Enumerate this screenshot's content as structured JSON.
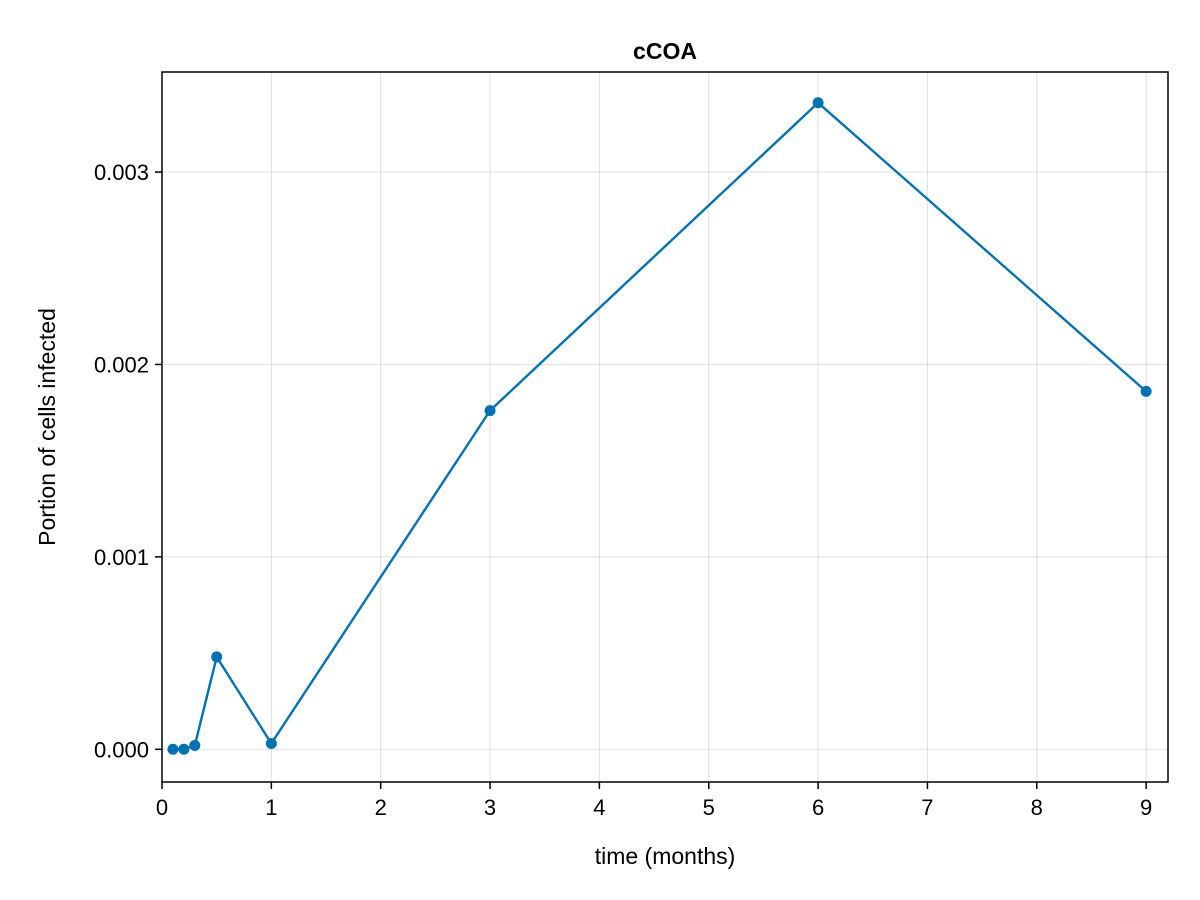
{
  "chart_data": {
    "type": "line",
    "title": "cCOA",
    "xlabel": "time (months)",
    "ylabel": "Portion of cells infected",
    "xlim": [
      0,
      9.2
    ],
    "ylim": [
      -0.00017,
      0.00352
    ],
    "x_ticks": [
      0,
      1,
      2,
      3,
      4,
      5,
      6,
      7,
      8,
      9
    ],
    "x_tick_labels": [
      "0",
      "1",
      "2",
      "3",
      "4",
      "5",
      "6",
      "7",
      "8",
      "9"
    ],
    "y_ticks": [
      0,
      0.001,
      0.002,
      0.003
    ],
    "y_tick_labels": [
      "0.000",
      "0.001",
      "0.002",
      "0.003"
    ],
    "grid": true,
    "series": [
      {
        "color": "#0072b2",
        "markers": true,
        "x": [
          0.1,
          0.2,
          0.3,
          0.5,
          1,
          3,
          6,
          9
        ],
        "y": [
          0.0,
          0.0,
          2e-05,
          0.00048,
          3e-05,
          0.00176,
          0.00336,
          0.00186
        ]
      }
    ]
  }
}
